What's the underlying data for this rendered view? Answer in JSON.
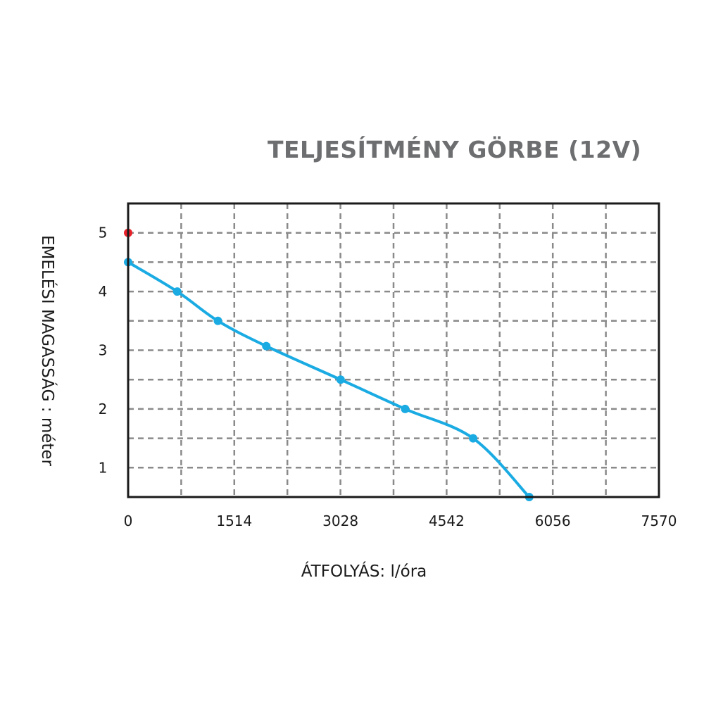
{
  "chart_data": {
    "type": "line",
    "title": "TELJESÍTMÉNY GÖRBE (12V)",
    "xlabel": "ÁTFOLYÁS: l/óra",
    "ylabel": "EMELÉSI MAGASSÁG : méter",
    "x_ticks": [
      "0",
      "1514",
      "3028",
      "4542",
      "6056",
      "7570"
    ],
    "y_ticks": [
      "1",
      "2",
      "3",
      "4",
      "5"
    ],
    "xlim": [
      0,
      7570
    ],
    "ylim": [
      0.5,
      5.5
    ],
    "grid": true,
    "series": [
      {
        "color": "#1aabe3",
        "points": [
          {
            "x": 0,
            "y": 4.5
          },
          {
            "x": 700,
            "y": 4.0
          },
          {
            "x": 1280,
            "y": 3.5
          },
          {
            "x": 1970,
            "y": 3.07
          },
          {
            "x": 3030,
            "y": 2.5
          },
          {
            "x": 3950,
            "y": 2.0
          },
          {
            "x": 4920,
            "y": 1.5
          },
          {
            "x": 5720,
            "y": 0.5
          }
        ]
      }
    ],
    "markers": [
      {
        "x": 0,
        "y": 5.0,
        "color": "#e8202a"
      }
    ]
  }
}
